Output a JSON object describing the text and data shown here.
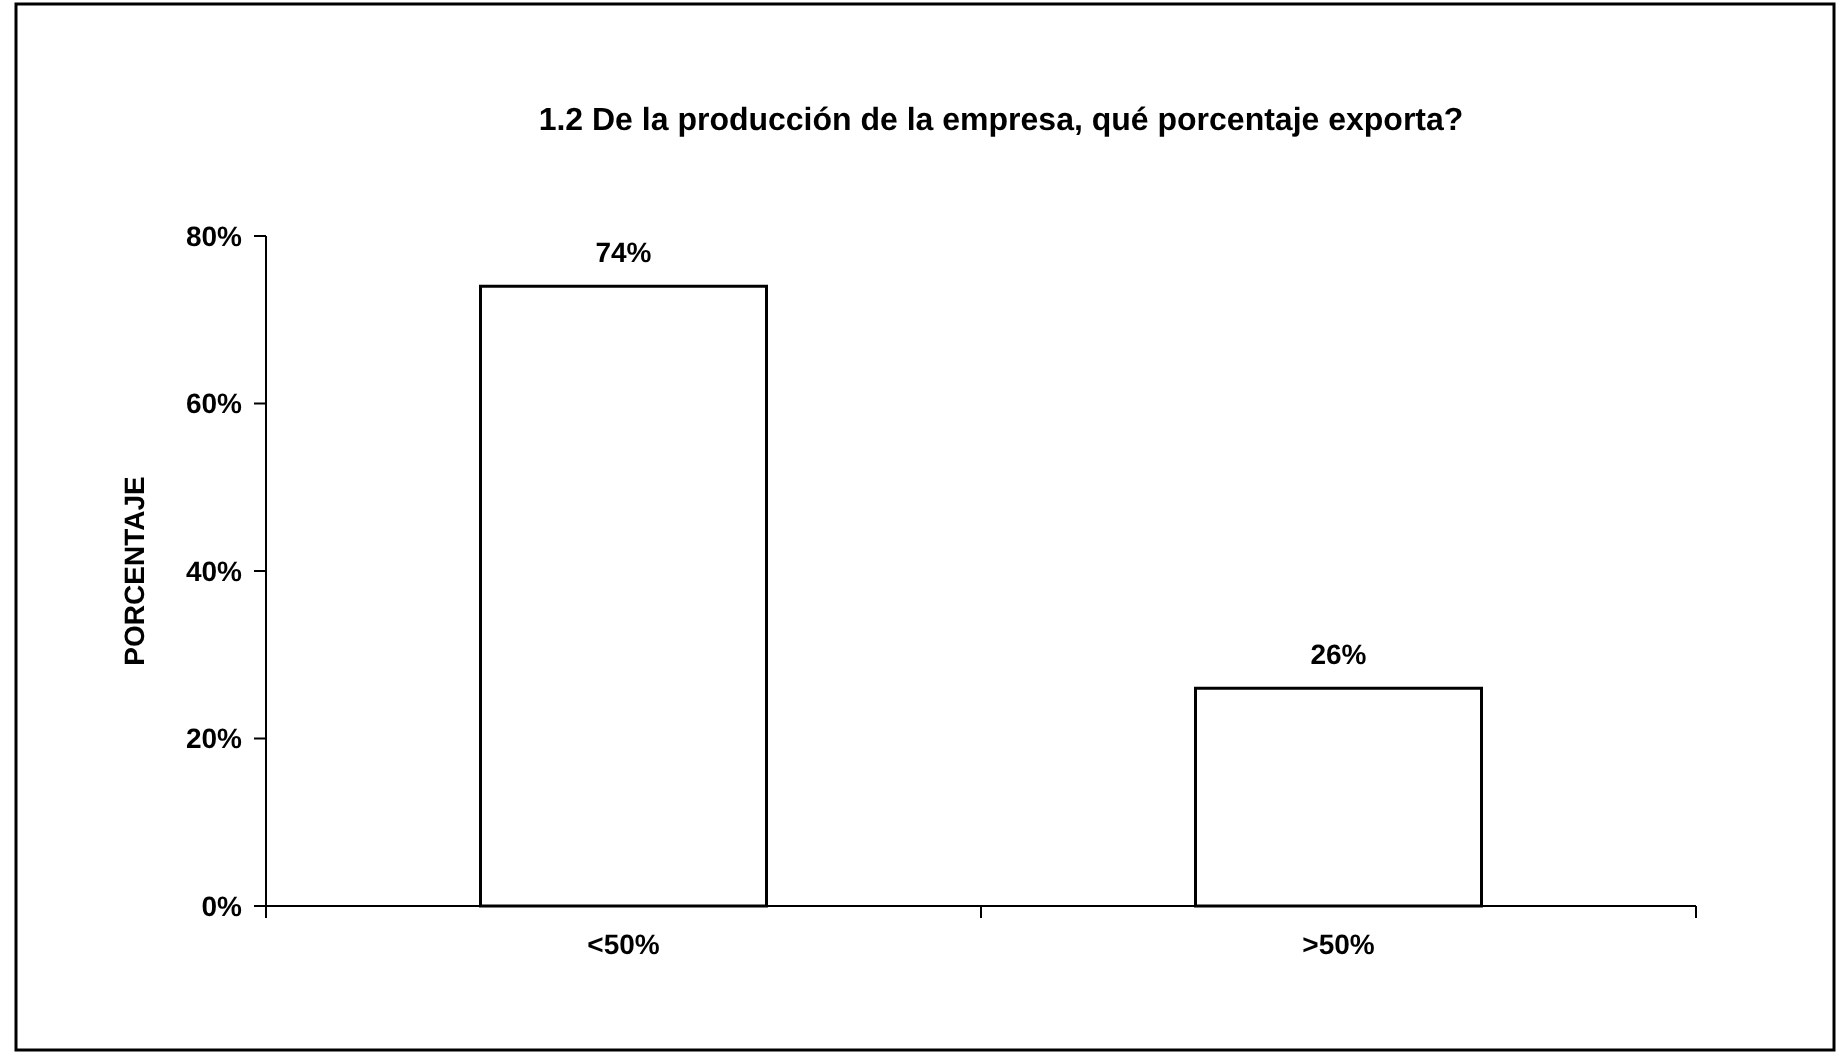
{
  "chart_data": {
    "type": "bar",
    "title": "1.2 De la producción de la empresa, qué porcentaje exporta?",
    "ylabel": "PORCENTAJE",
    "categories": [
      "<50%",
      ">50%"
    ],
    "values": [
      74,
      26
    ],
    "color": "#ffffff",
    "value_labels": [
      "74%",
      "26%"
    ],
    "ylim": [
      0,
      80
    ],
    "yticks": [
      {
        "value": 0,
        "label": "0%"
      },
      {
        "value": 20,
        "label": "20%"
      },
      {
        "value": 40,
        "label": "40%"
      },
      {
        "value": 60,
        "label": "60%"
      },
      {
        "value": 80,
        "label": "80%"
      }
    ],
    "grid": false
  }
}
